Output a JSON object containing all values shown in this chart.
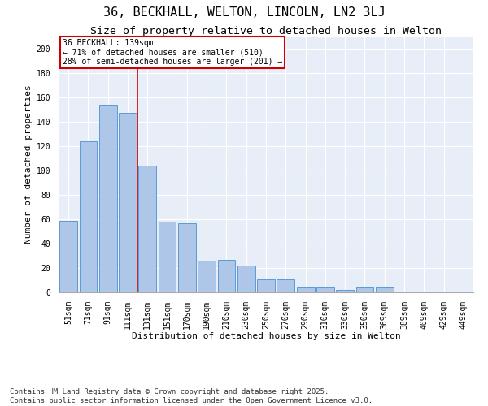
{
  "title": "36, BECKHALL, WELTON, LINCOLN, LN2 3LJ",
  "subtitle": "Size of property relative to detached houses in Welton",
  "xlabel": "Distribution of detached houses by size in Welton",
  "ylabel": "Number of detached properties",
  "categories": [
    "51sqm",
    "71sqm",
    "91sqm",
    "111sqm",
    "131sqm",
    "151sqm",
    "170sqm",
    "190sqm",
    "210sqm",
    "230sqm",
    "250sqm",
    "270sqm",
    "290sqm",
    "310sqm",
    "330sqm",
    "350sqm",
    "369sqm",
    "389sqm",
    "409sqm",
    "429sqm",
    "449sqm"
  ],
  "values": [
    59,
    124,
    154,
    147,
    104,
    58,
    57,
    26,
    27,
    22,
    11,
    11,
    4,
    4,
    2,
    4,
    4,
    1,
    0,
    1,
    1
  ],
  "bar_color": "#aec6e8",
  "bar_edge_color": "#5b9bd5",
  "annotation_title": "36 BECKHALL: 139sqm",
  "annotation_line1": "← 71% of detached houses are smaller (510)",
  "annotation_line2": "28% of semi-detached houses are larger (201) →",
  "annotation_box_color": "#cc0000",
  "highlight_line_index": 4,
  "ylim": [
    0,
    210
  ],
  "yticks": [
    0,
    20,
    40,
    60,
    80,
    100,
    120,
    140,
    160,
    180,
    200
  ],
  "background_color": "#e8eef7",
  "footer": "Contains HM Land Registry data © Crown copyright and database right 2025.\nContains public sector information licensed under the Open Government Licence v3.0.",
  "title_fontsize": 11,
  "subtitle_fontsize": 9.5,
  "axis_label_fontsize": 8,
  "tick_fontsize": 7,
  "footer_fontsize": 6.5
}
